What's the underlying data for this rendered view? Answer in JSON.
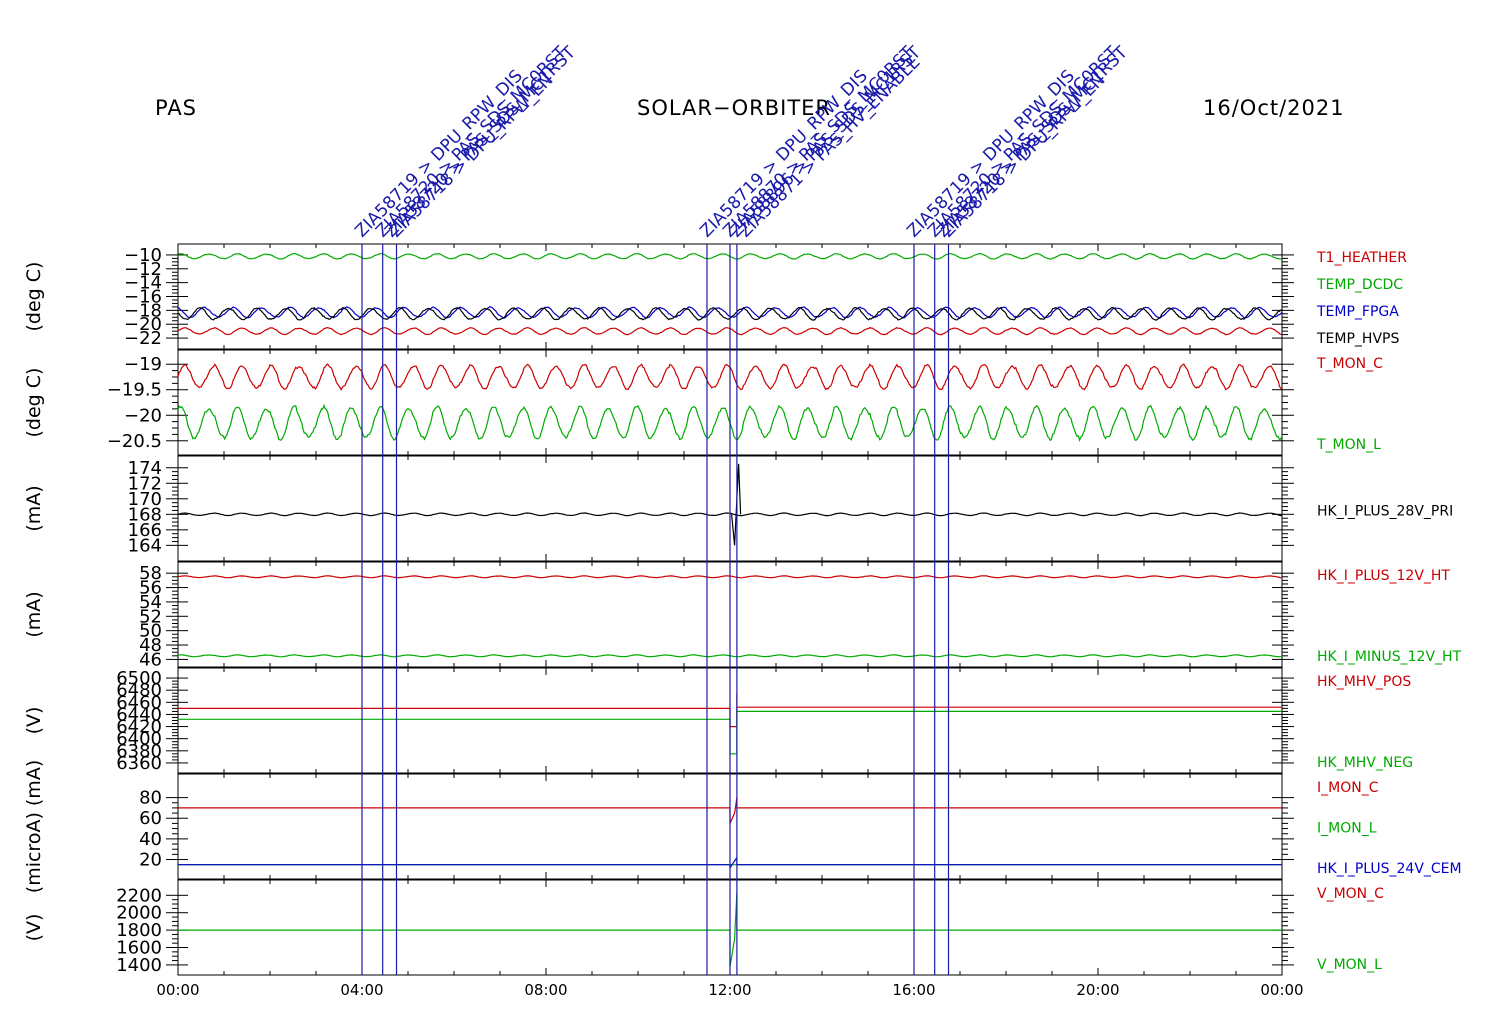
{
  "header": {
    "left": "PAS",
    "center": "SOLAR−ORBITER",
    "right": "16/Oct/2021"
  },
  "colors": {
    "red": "#cc0000",
    "green": "#00aa00",
    "blue": "#0000cc",
    "black": "#000000",
    "event": "#1a1aaa"
  },
  "time_ticks": [
    "00:00",
    "04:00",
    "08:00",
    "12:00",
    "16:00",
    "20:00",
    "00:00"
  ],
  "events": [
    {
      "hour": 4.0,
      "labels": [
        "ZIA58719 > DPU_RPW_DIS"
      ]
    },
    {
      "hour": 4.45,
      "labels": [
        "ZIA58720 > PAS_SDS_MC0RST",
        "ZIA58720 > PAS_SDS_MC1RST"
      ]
    },
    {
      "hour": 4.75,
      "labels": [
        "ZIA58718 > DPU_RPW_EN"
      ]
    },
    {
      "hour": 11.5,
      "labels": [
        "ZIA58719 > DPU_RPW_DIS"
      ]
    },
    {
      "hour": 12.0,
      "labels": [
        "ZIA58870 > PAS_SDS_MC0RST"
      ]
    },
    {
      "hour": 12.15,
      "labels": [
        "ZIA58896 > PAS_SDS_MC1RST",
        "ZIA58871 > PAS_HV_ENABLE"
      ]
    },
    {
      "hour": 16.0,
      "labels": [
        "ZIA58719 > DPU_RPW_DIS"
      ]
    },
    {
      "hour": 16.45,
      "labels": [
        "ZIA58720 > PAS_SDS_MC0RST",
        "ZIA58720 > PAS_SDS_MC1RST"
      ]
    },
    {
      "hour": 16.75,
      "labels": [
        "ZIA58718 > DPU_RPW_EN"
      ]
    }
  ],
  "chart_data": [
    {
      "type": "line",
      "ylabel": "(deg C)",
      "ylim": [
        -23,
        -9
      ],
      "yticks": [
        -10,
        -12,
        -14,
        -16,
        -18,
        -20,
        -22
      ],
      "xlim_hours": [
        0,
        24
      ],
      "series": [
        {
          "name": "T1_HEATHER",
          "color": "#cc0000",
          "mean": -21.0,
          "amp": 0.45,
          "period_h": 0.62
        },
        {
          "name": "TEMP_DCDC",
          "color": "#00aa00",
          "mean": -10.2,
          "amp": 0.35,
          "period_h": 0.62
        },
        {
          "name": "TEMP_FPGA",
          "color": "#0000cc",
          "mean": -18.3,
          "amp": 0.7,
          "period_h": 0.62
        },
        {
          "name": "TEMP_HVPS",
          "color": "#000000",
          "mean": -18.5,
          "amp": 0.8,
          "period_h": 0.62
        }
      ]
    },
    {
      "type": "line",
      "ylabel": "(deg C)",
      "ylim": [
        -20.7,
        -18.8
      ],
      "yticks": [
        -19.0,
        -19.5,
        -20.0,
        -20.5
      ],
      "xlim_hours": [
        0,
        24
      ],
      "series": [
        {
          "name": "T_MON_C",
          "color": "#cc0000",
          "mean": -19.25,
          "amp": 0.22,
          "period_h": 0.62
        },
        {
          "name": "T_MON_L",
          "color": "#00aa00",
          "mean": -20.15,
          "amp": 0.3,
          "period_h": 0.62
        }
      ]
    },
    {
      "type": "line",
      "ylabel": "(mA)",
      "ylim": [
        162.5,
        175
      ],
      "yticks": [
        164,
        166,
        168,
        170,
        172,
        174
      ],
      "xlim_hours": [
        0,
        24
      ],
      "series": [
        {
          "name": "HK_I_PLUS_28V_PRI",
          "color": "#000000",
          "mean": 168.0,
          "amp": 0.15,
          "period_h": 0.62,
          "spike": {
            "hour": 12.1,
            "min": 164.0,
            "max": 174.5
          }
        }
      ]
    },
    {
      "type": "line",
      "ylabel": "(mA)",
      "ylim": [
        45.5,
        59
      ],
      "yticks": [
        58,
        56,
        54,
        52,
        50,
        48,
        46
      ],
      "xlim_hours": [
        0,
        24
      ],
      "series": [
        {
          "name": "HK_I_PLUS_12V_HT",
          "color": "#cc0000",
          "mean": 57.5,
          "amp": 0.12,
          "period_h": 0.62
        },
        {
          "name": "HK_I_MINUS_12V_HT",
          "color": "#00aa00",
          "mean": 46.5,
          "amp": 0.12,
          "period_h": 0.62
        }
      ]
    },
    {
      "type": "line",
      "ylabel": "(V)",
      "ylim": [
        6350,
        6510
      ],
      "yticks": [
        6500,
        6480,
        6460,
        6440,
        6420,
        6400,
        6380,
        6360
      ],
      "tick_labels_overlap": true,
      "xlim_hours": [
        0,
        24
      ],
      "series": [
        {
          "name": "HK_MHV_POS",
          "color": "#cc0000",
          "steps": [
            [
              0,
              6450
            ],
            [
              12.0,
              6450
            ],
            [
              12.0,
              6420
            ],
            [
              12.15,
              6420
            ],
            [
              12.15,
              6475
            ],
            [
              12.15,
              6452
            ],
            [
              24,
              6452
            ]
          ]
        },
        {
          "name": "HK_MHV_NEG",
          "color": "#00aa00",
          "steps": [
            [
              0,
              6432
            ],
            [
              12.0,
              6432
            ],
            [
              12.0,
              6375
            ],
            [
              12.15,
              6375
            ],
            [
              12.15,
              6445
            ],
            [
              24,
              6445
            ]
          ]
        }
      ]
    },
    {
      "type": "line",
      "ylabel": "(microA) (mA)",
      "ylim": [
        5,
        99
      ],
      "yticks": [
        80,
        60,
        40,
        20
      ],
      "xlim_hours": [
        0,
        24
      ],
      "series": [
        {
          "name": "I_MON_C",
          "color": "#cc0000",
          "steps": [
            [
              0,
              70
            ],
            [
              12.0,
              70
            ],
            [
              12.0,
              55
            ],
            [
              12.1,
              65
            ],
            [
              12.15,
              80
            ],
            [
              12.15,
              70
            ],
            [
              24,
              70
            ]
          ]
        },
        {
          "name": "I_MON_L",
          "color": "#00aa00",
          "steps": [
            [
              0,
              15
            ],
            [
              24,
              15
            ]
          ]
        },
        {
          "name": "HK_I_PLUS_24V_CEM",
          "color": "#0000cc",
          "steps": [
            [
              0,
              15
            ],
            [
              12.0,
              15
            ],
            [
              12.0,
              12
            ],
            [
              12.15,
              22
            ],
            [
              12.15,
              15
            ],
            [
              24,
              15
            ]
          ]
        }
      ]
    },
    {
      "type": "line",
      "ylabel": "(V)",
      "ylim": [
        1330,
        2330
      ],
      "yticks": [
        2200,
        2000,
        1800,
        1600,
        1400
      ],
      "xlim_hours": [
        0,
        24
      ],
      "series": [
        {
          "name": "V_MON_C",
          "color": "#cc0000",
          "steps": []
        },
        {
          "name": "V_MON_L",
          "color": "#00aa00",
          "steps": [
            [
              0,
              1800
            ],
            [
              12.0,
              1800
            ],
            [
              12.0,
              1380
            ],
            [
              12.1,
              1700
            ],
            [
              12.15,
              2230
            ],
            [
              12.15,
              1800
            ],
            [
              24,
              1800
            ]
          ]
        }
      ]
    }
  ]
}
